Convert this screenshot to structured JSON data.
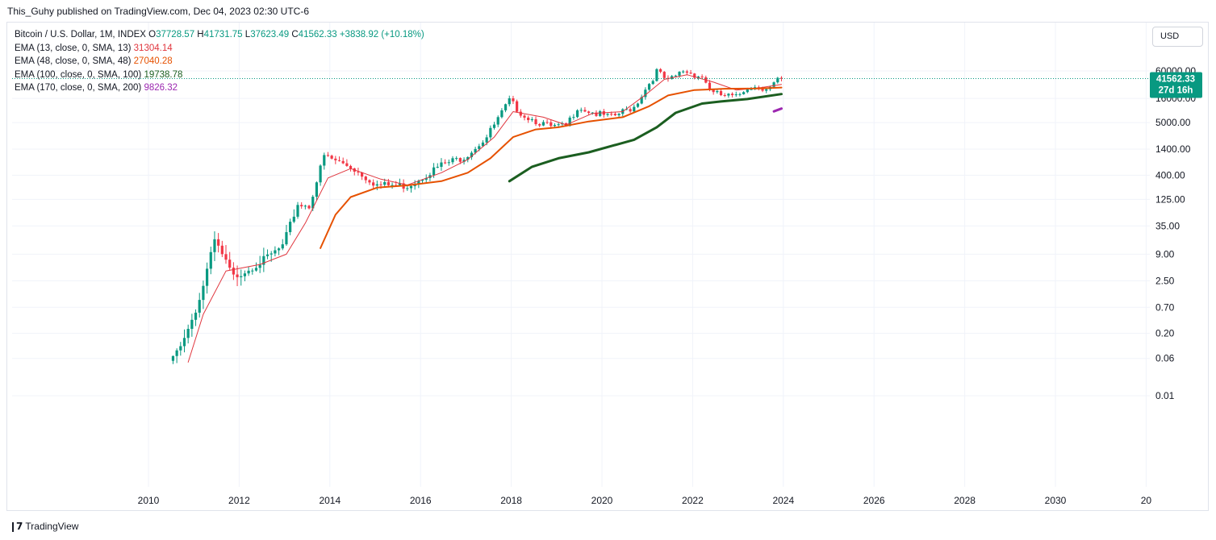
{
  "publisher": "This_Guhy published on TradingView.com, Dec 04, 2023 02:30 UTC-6",
  "footer": {
    "brand": "TradingView",
    "logo_icon": "tradingview-logo-icon"
  },
  "currency_button": "USD",
  "legend": {
    "symbol": "Bitcoin / U.S. Dollar, 1M, INDEX",
    "open_label": "O",
    "open": "37728.57",
    "high_label": "H",
    "high": "41731.75",
    "low_label": "L",
    "low": "37623.49",
    "close_label": "C",
    "close": "41562.33",
    "change": "+3838.92 (+10.18%)",
    "indicators": [
      {
        "label": "EMA (13, close, 0, SMA, 13)",
        "value": "31304.14",
        "color": "#e0353d"
      },
      {
        "label": "EMA (48, close, 0, SMA, 48)",
        "value": "27040.28",
        "color": "#e65100"
      },
      {
        "label": "EMA (100, close, 0, SMA, 100)",
        "value": "19738.78",
        "color": "#1b5e20"
      },
      {
        "label": "EMA (170, close, 0, SMA, 200)",
        "value": "9826.32",
        "color": "#9c27b0"
      }
    ]
  },
  "price_tag": {
    "price": "41562.33",
    "countdown": "27d 16h",
    "color": "#089981"
  },
  "colors": {
    "up": "#089981",
    "down": "#f23645",
    "grid": "#f0f3fa"
  },
  "chart_data": {
    "type": "candlestick",
    "scale": "log",
    "x_ticks": [
      "2010",
      "2012",
      "2014",
      "2016",
      "2018",
      "2020",
      "2022",
      "2024",
      "2026",
      "2028",
      "2030",
      "20"
    ],
    "y_ticks": [
      "60000.00",
      "16000.00",
      "5000.00",
      "1400.00",
      "400.00",
      "125.00",
      "35.00",
      "9.00",
      "2.50",
      "0.70",
      "0.20",
      "0.06",
      "0.01"
    ],
    "last_price": 41562.33,
    "price_anchors": [
      [
        "2010-07",
        0.06
      ],
      [
        "2010-11",
        0.25
      ],
      [
        "2011-02",
        1.0
      ],
      [
        "2011-06",
        17
      ],
      [
        "2011-11",
        3
      ],
      [
        "2012-06",
        6
      ],
      [
        "2012-12",
        13
      ],
      [
        "2013-04",
        100
      ],
      [
        "2013-07",
        90
      ],
      [
        "2013-11",
        1000
      ],
      [
        "2014-06",
        600
      ],
      [
        "2015-01",
        250
      ],
      [
        "2015-09",
        240
      ],
      [
        "2016-06",
        650
      ],
      [
        "2016-12",
        960
      ],
      [
        "2017-06",
        2500
      ],
      [
        "2017-12",
        14000
      ],
      [
        "2018-04",
        7000
      ],
      [
        "2018-11",
        4000
      ],
      [
        "2019-03",
        4100
      ],
      [
        "2019-06",
        10800
      ],
      [
        "2019-12",
        7200
      ],
      [
        "2020-03",
        6400
      ],
      [
        "2020-09",
        10800
      ],
      [
        "2021-03",
        58800
      ],
      [
        "2021-06",
        35000
      ],
      [
        "2021-10",
        61000
      ],
      [
        "2022-03",
        45500
      ],
      [
        "2022-06",
        19900
      ],
      [
        "2022-12",
        16500
      ],
      [
        "2023-03",
        28400
      ],
      [
        "2023-09",
        27000
      ],
      [
        "2023-11",
        37700
      ],
      [
        "2023-12",
        41562
      ]
    ],
    "series": [
      {
        "name": "EMA (13, close, 0, SMA, 13)",
        "color": "#e0353d",
        "width": 1,
        "points": [
          [
            "2010-11",
            0.05
          ],
          [
            "2011-03",
            0.5
          ],
          [
            "2011-09",
            4
          ],
          [
            "2012-06",
            5.5
          ],
          [
            "2013-01",
            9
          ],
          [
            "2013-06",
            40
          ],
          [
            "2013-12",
            350
          ],
          [
            "2014-06",
            550
          ],
          [
            "2015-02",
            330
          ],
          [
            "2015-09",
            250
          ],
          [
            "2016-06",
            450
          ],
          [
            "2017-01",
            850
          ],
          [
            "2017-08",
            2500
          ],
          [
            "2018-01",
            8500
          ],
          [
            "2018-09",
            6500
          ],
          [
            "2019-03",
            4500
          ],
          [
            "2019-10",
            7800
          ],
          [
            "2020-06",
            8500
          ],
          [
            "2020-12",
            19000
          ],
          [
            "2021-05",
            40000
          ],
          [
            "2021-11",
            50000
          ],
          [
            "2022-06",
            35000
          ],
          [
            "2022-12",
            24000
          ],
          [
            "2023-06",
            26500
          ],
          [
            "2023-12",
            31304
          ]
        ]
      },
      {
        "name": "EMA (48, close, 0, SMA, 48)",
        "color": "#e65100",
        "width": 2,
        "points": [
          [
            "2013-10",
            12
          ],
          [
            "2014-02",
            60
          ],
          [
            "2014-06",
            140
          ],
          [
            "2015-01",
            220
          ],
          [
            "2015-09",
            245
          ],
          [
            "2016-06",
            300
          ],
          [
            "2017-01",
            450
          ],
          [
            "2017-07",
            900
          ],
          [
            "2018-01",
            2500
          ],
          [
            "2018-07",
            3600
          ],
          [
            "2019-01",
            4000
          ],
          [
            "2019-09",
            5300
          ],
          [
            "2020-06",
            6500
          ],
          [
            "2021-01",
            11000
          ],
          [
            "2021-06",
            18500
          ],
          [
            "2022-01",
            24000
          ],
          [
            "2022-09",
            25500
          ],
          [
            "2023-06",
            25800
          ],
          [
            "2023-12",
            27040
          ]
        ]
      },
      {
        "name": "EMA (100, close, 0, SMA, 100)",
        "color": "#1b5e20",
        "width": 3,
        "points": [
          [
            "2017-12",
            300
          ],
          [
            "2018-06",
            600
          ],
          [
            "2019-01",
            900
          ],
          [
            "2019-09",
            1200
          ],
          [
            "2020-09",
            2200
          ],
          [
            "2021-03",
            4000
          ],
          [
            "2021-08",
            8000
          ],
          [
            "2022-03",
            12500
          ],
          [
            "2022-08",
            13800
          ],
          [
            "2023-03",
            15500
          ],
          [
            "2023-12",
            19739
          ]
        ]
      },
      {
        "name": "EMA (170, close, 0, SMA, 200)",
        "color": "#9c27b0",
        "width": 3,
        "points": [
          [
            "2023-10",
            8600
          ],
          [
            "2023-12",
            9826
          ]
        ]
      }
    ]
  }
}
